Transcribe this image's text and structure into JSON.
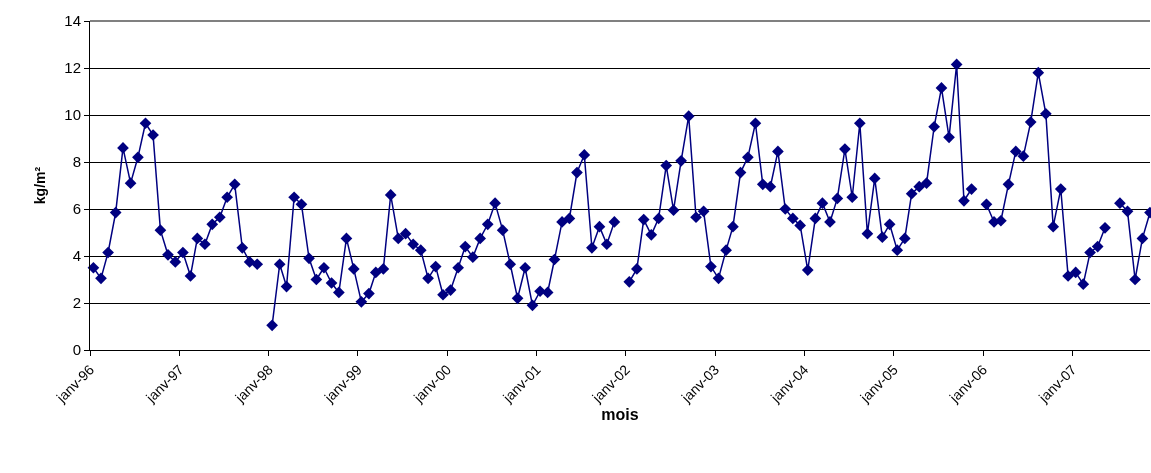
{
  "chart_data": {
    "type": "line",
    "xlabel": "mois",
    "ylabel": "kg/m²",
    "x": [
      "1996-01-15",
      "1996-02-15",
      "1996-03-15",
      "1996-04-15",
      "1996-05-15",
      "1996-06-15",
      "1996-07-15",
      "1996-08-15",
      "1996-09-15",
      "1996-10-15",
      "1996-11-15",
      "1996-12-15",
      "1997-01-15",
      "1997-02-15",
      "1997-03-15",
      "1997-04-15",
      "1997-05-15",
      "1997-06-15",
      "1997-07-15",
      "1997-08-15",
      "1997-09-15",
      "1997-10-15",
      "1997-11-15",
      "1997-12-15",
      "1998-01-15",
      "1998-02-15",
      "1998-03-15",
      "1998-04-15",
      "1998-05-15",
      "1998-06-15",
      "1998-07-15",
      "1998-08-15",
      "1998-09-15",
      "1998-10-15",
      "1998-11-15",
      "1998-12-15",
      "1999-01-15",
      "1999-02-15",
      "1999-03-15",
      "1999-04-15",
      "1999-05-15",
      "1999-06-15",
      "1999-07-15",
      "1999-08-15",
      "1999-09-15",
      "1999-10-15",
      "1999-11-15",
      "1999-12-15",
      "2000-01-15",
      "2000-02-15",
      "2000-03-15",
      "2000-04-15",
      "2000-05-15",
      "2000-06-15",
      "2000-07-15",
      "2000-08-15",
      "2000-09-15",
      "2000-10-15",
      "2000-11-15",
      "2000-12-15",
      "2001-01-15",
      "2001-02-15",
      "2001-03-15",
      "2001-04-15",
      "2001-05-15",
      "2001-06-15",
      "2001-07-15",
      "2001-08-15",
      "2001-09-15",
      "2001-10-15",
      "2001-11-15",
      "2001-12-15",
      "2002-01-15",
      "2002-02-15",
      "2002-03-15",
      "2002-04-15",
      "2002-05-15",
      "2002-06-15",
      "2002-07-15",
      "2002-08-15",
      "2002-09-15",
      "2002-10-15",
      "2002-11-15",
      "2002-12-15",
      "2003-01-15",
      "2003-02-15",
      "2003-03-15",
      "2003-04-15",
      "2003-05-15",
      "2003-06-15",
      "2003-07-15",
      "2003-08-15",
      "2003-09-15",
      "2003-10-15",
      "2003-11-15",
      "2003-12-15",
      "2004-01-15",
      "2004-02-15",
      "2004-03-15",
      "2004-04-15",
      "2004-05-15",
      "2004-06-15",
      "2004-07-15",
      "2004-08-15",
      "2004-09-15",
      "2004-10-15",
      "2004-11-15",
      "2004-12-15",
      "2005-01-15",
      "2005-02-15",
      "2005-03-15",
      "2005-04-15",
      "2005-05-15",
      "2005-06-15",
      "2005-07-15",
      "2005-08-15",
      "2005-09-15",
      "2005-10-15",
      "2005-11-15",
      "2005-12-15",
      "2006-01-15",
      "2006-02-15",
      "2006-03-15",
      "2006-04-15",
      "2006-05-15",
      "2006-06-15",
      "2006-07-15",
      "2006-08-15",
      "2006-09-15",
      "2006-10-15",
      "2006-11-15",
      "2006-12-15",
      "2007-01-15",
      "2007-02-15",
      "2007-03-15",
      "2007-04-15",
      "2007-05-15",
      "2007-06-15",
      "2007-07-15",
      "2007-08-15",
      "2007-09-15",
      "2007-10-15",
      "2007-11-15"
    ],
    "series": [
      {
        "color": "#000080",
        "values": [
          3.5,
          3.05,
          4.15,
          5.85,
          8.6,
          7.1,
          8.2,
          9.65,
          9.15,
          5.1,
          4.05,
          3.75,
          4.15,
          3.15,
          4.75,
          4.5,
          5.35,
          5.65,
          6.5,
          7.05,
          4.35,
          3.75,
          3.65,
          null,
          1.05,
          3.65,
          2.7,
          6.5,
          6.2,
          3.9,
          3.0,
          3.5,
          2.85,
          2.45,
          4.75,
          3.45,
          2.05,
          2.4,
          3.3,
          3.45,
          6.6,
          4.75,
          4.95,
          4.5,
          4.25,
          3.05,
          3.55,
          2.35,
          2.55,
          3.5,
          4.4,
          3.95,
          4.75,
          5.35,
          6.25,
          5.1,
          3.65,
          2.2,
          3.5,
          1.9,
          2.5,
          2.45,
          3.85,
          5.45,
          5.6,
          7.55,
          8.3,
          4.35,
          5.25,
          4.5,
          5.45,
          null,
          2.9,
          3.45,
          5.55,
          4.9,
          5.6,
          7.85,
          5.95,
          8.05,
          9.95,
          5.65,
          5.9,
          3.55,
          3.05,
          4.25,
          5.25,
          7.55,
          8.2,
          9.65,
          7.05,
          6.95,
          8.45,
          6.0,
          5.6,
          5.3,
          3.4,
          5.6,
          6.25,
          5.45,
          6.45,
          8.55,
          6.5,
          9.65,
          4.95,
          7.3,
          4.8,
          5.35,
          4.25,
          4.75,
          6.65,
          6.95,
          7.1,
          9.5,
          11.15,
          9.05,
          12.15,
          6.35,
          6.85,
          null,
          6.2,
          5.45,
          5.5,
          7.05,
          8.45,
          8.25,
          9.7,
          11.8,
          10.05,
          5.25,
          6.85,
          3.15,
          3.3,
          2.8,
          4.15,
          4.4,
          5.2,
          null,
          6.25,
          5.9,
          3.0,
          4.75,
          5.85
        ]
      }
    ],
    "xlim": [
      "1996-01-01",
      "2007-11-15"
    ],
    "xticks": [
      {
        "value": "1996-01-01",
        "label": "janv-96"
      },
      {
        "value": "1997-01-01",
        "label": "janv-97"
      },
      {
        "value": "1998-01-01",
        "label": "janv-98"
      },
      {
        "value": "1999-01-01",
        "label": "janv-99"
      },
      {
        "value": "2000-01-01",
        "label": "janv-00"
      },
      {
        "value": "2001-01-01",
        "label": "janv-01"
      },
      {
        "value": "2002-01-01",
        "label": "janv-02"
      },
      {
        "value": "2003-01-01",
        "label": "janv-03"
      },
      {
        "value": "2004-01-01",
        "label": "janv-04"
      },
      {
        "value": "2005-01-01",
        "label": "janv-05"
      },
      {
        "value": "2006-01-01",
        "label": "janv-06"
      },
      {
        "value": "2007-01-01",
        "label": "janv-07"
      }
    ],
    "ylim": [
      0,
      14
    ],
    "yticks": [
      0,
      2,
      4,
      6,
      8,
      10,
      12,
      14
    ],
    "grid": "y",
    "marker": "diamond",
    "line_style": "solid"
  }
}
